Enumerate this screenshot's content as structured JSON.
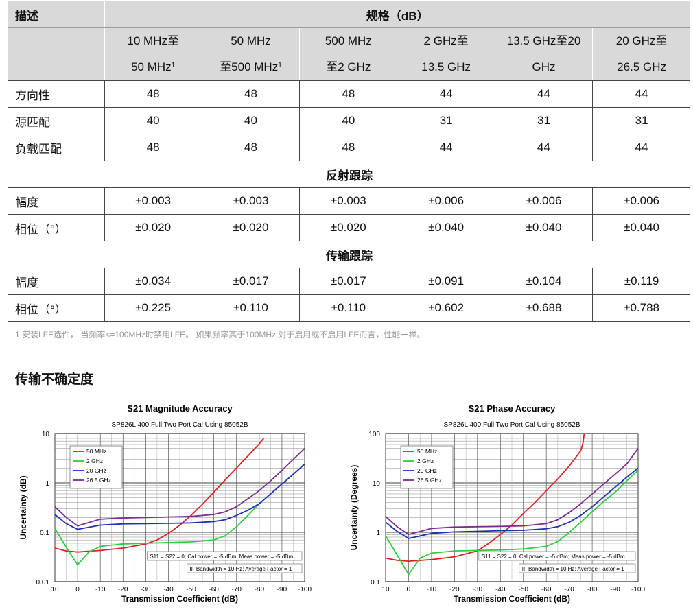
{
  "table": {
    "desc_label": "描述",
    "spec_label": "规格（dB）",
    "columns": [
      {
        "line1": "10 MHz至",
        "line2": "50 MHz",
        "sup": "1"
      },
      {
        "line1": "50 MHz",
        "line2": "至500 MHz",
        "sup": "1"
      },
      {
        "line1": "500 MHz",
        "line2": "至2 GHz",
        "sup": ""
      },
      {
        "line1": "2 GHz至",
        "line2": "13.5 GHz",
        "sup": ""
      },
      {
        "line1": "13.5 GHz至20",
        "line2": "GHz",
        "sup": ""
      },
      {
        "line1": "20 GHz至",
        "line2": "26.5 GHz",
        "sup": ""
      }
    ],
    "rows_top": [
      {
        "label": "方向性",
        "values": [
          "48",
          "48",
          "48",
          "44",
          "44",
          "44"
        ]
      },
      {
        "label": "源匹配",
        "values": [
          "40",
          "40",
          "40",
          "31",
          "31",
          "31"
        ]
      },
      {
        "label": "负载匹配",
        "values": [
          "48",
          "48",
          "48",
          "44",
          "44",
          "44"
        ]
      }
    ],
    "section_reflection": "反射跟踪",
    "rows_reflection": [
      {
        "label": "幅度",
        "values": [
          "±0.003",
          "±0.003",
          "±0.003",
          "±0.006",
          "±0.006",
          "±0.006"
        ]
      },
      {
        "label": "相位（°）",
        "values": [
          "±0.020",
          "±0.020",
          "±0.020",
          "±0.040",
          "±0.040",
          "±0.040"
        ]
      }
    ],
    "section_transmission": "传输跟踪",
    "rows_transmission": [
      {
        "label": "幅度",
        "values": [
          "±0.034",
          "±0.017",
          "±0.017",
          "±0.091",
          "±0.104",
          "±0.119"
        ]
      },
      {
        "label": "相位（°）",
        "values": [
          "±0.225",
          "±0.110",
          "±0.110",
          "±0.602",
          "±0.688",
          "±0.788"
        ]
      }
    ]
  },
  "footnote": "1 安装LFE选件， 当频率<=100MHz时禁用LFE。 如果频率高于100MHz,对于启用或不启用LFE而言，性能一样。",
  "section_heading": "传输不确定度",
  "chart_data": [
    {
      "type": "line",
      "title": "S21 Magnitude Accuracy",
      "subtitle": "SP826L 400 Full Two Port Cal Using 85052B",
      "xlabel": "Transmission Coefficient (dB)",
      "ylabel": "Uncertainty (dB)",
      "y_scale": "log",
      "xlim": [
        10,
        -100
      ],
      "ylim": [
        0.01,
        10
      ],
      "x_ticks": [
        "10",
        "0",
        "-10",
        "-20",
        "-30",
        "-40",
        "-50",
        "-60",
        "-70",
        "-80",
        "-90",
        "-100"
      ],
      "y_ticks": [
        "0.01",
        "0.1",
        "1",
        "10"
      ],
      "legend_position": "top-left",
      "notes": [
        "S11 = S22 = 0; Cal power = -5 dBm; Meas power = -5 dBm",
        "IF Bandwidth = 10 Hz; Average Factor = 1"
      ],
      "series": [
        {
          "name": "50 MHz",
          "color": "#e02020",
          "x": [
            10,
            5,
            0,
            -10,
            -20,
            -30,
            -35,
            -40,
            -45,
            -50,
            -55,
            -60,
            -65,
            -70,
            -75,
            -80,
            -82
          ],
          "y": [
            0.048,
            0.042,
            0.04,
            0.043,
            0.048,
            0.058,
            0.07,
            0.095,
            0.14,
            0.22,
            0.37,
            0.65,
            1.15,
            2.0,
            3.5,
            6.2,
            8.0
          ]
        },
        {
          "name": "2 GHz",
          "color": "#2ecc40",
          "x": [
            10,
            5,
            0,
            -5,
            -10,
            -20,
            -30,
            -40,
            -50,
            -60,
            -65,
            -70,
            -75,
            -80,
            -85,
            -90,
            -95,
            -100
          ],
          "y": [
            0.12,
            0.05,
            0.022,
            0.04,
            0.052,
            0.058,
            0.06,
            0.062,
            0.064,
            0.07,
            0.085,
            0.13,
            0.22,
            0.38,
            0.6,
            0.95,
            1.5,
            2.4
          ]
        },
        {
          "name": "20 GHz",
          "color": "#1f2fb5",
          "x": [
            10,
            5,
            0,
            -10,
            -20,
            -30,
            -40,
            -50,
            -60,
            -65,
            -70,
            -75,
            -80,
            -85,
            -90,
            -95,
            -100
          ],
          "y": [
            0.23,
            0.15,
            0.115,
            0.14,
            0.148,
            0.15,
            0.152,
            0.155,
            0.165,
            0.18,
            0.22,
            0.28,
            0.38,
            0.6,
            0.95,
            1.5,
            2.4
          ]
        },
        {
          "name": "26.5 GHz",
          "color": "#7b2d8e",
          "x": [
            10,
            5,
            0,
            -10,
            -20,
            -30,
            -40,
            -50,
            -60,
            -65,
            -70,
            -75,
            -80,
            -85,
            -90,
            -95,
            -100
          ],
          "y": [
            0.33,
            0.2,
            0.135,
            0.185,
            0.195,
            0.2,
            0.205,
            0.21,
            0.23,
            0.26,
            0.33,
            0.48,
            0.7,
            1.1,
            1.8,
            3.0,
            5.0
          ]
        }
      ]
    },
    {
      "type": "line",
      "title": "S21 Phase Accuracy",
      "subtitle": "SP826L 400 Full Two Port Cal Using 85052B",
      "xlabel": "Transmission Coefficient (dB)",
      "ylabel": "Uncertainty (Degrees)",
      "y_scale": "log",
      "xlim": [
        10,
        -100
      ],
      "ylim": [
        0.1,
        100
      ],
      "x_ticks": [
        "10",
        "0",
        "-10",
        "-20",
        "-30",
        "-40",
        "-50",
        "-60",
        "-70",
        "-80",
        "-90",
        "-100"
      ],
      "y_ticks": [
        "0.1",
        "1",
        "10",
        "100"
      ],
      "legend_position": "top-left",
      "notes": [
        "S11 = S22 = 0; Cal power = -5 dBm; Meas power = -5 dBm",
        "IF Bandwidth = 10 Hz; Average Factor = 1"
      ],
      "series": [
        {
          "name": "50 MHz",
          "color": "#e02020",
          "x": [
            10,
            5,
            0,
            -10,
            -20,
            -30,
            -35,
            -40,
            -45,
            -50,
            -55,
            -60,
            -65,
            -70,
            -75,
            -76,
            -76.5
          ],
          "y": [
            0.3,
            0.27,
            0.26,
            0.28,
            0.32,
            0.42,
            0.6,
            0.9,
            1.4,
            2.4,
            4.0,
            7.0,
            12,
            22,
            45,
            65,
            100
          ]
        },
        {
          "name": "2 GHz",
          "color": "#2ecc40",
          "x": [
            10,
            5,
            0,
            -5,
            -10,
            -20,
            -30,
            -40,
            -50,
            -60,
            -65,
            -70,
            -75,
            -80,
            -85,
            -90,
            -95,
            -100
          ],
          "y": [
            0.85,
            0.35,
            0.14,
            0.3,
            0.38,
            0.42,
            0.43,
            0.44,
            0.46,
            0.52,
            0.65,
            1.0,
            1.6,
            2.6,
            4.2,
            6.5,
            11,
            18
          ]
        },
        {
          "name": "20 GHz",
          "color": "#1f2fb5",
          "x": [
            10,
            5,
            0,
            -10,
            -20,
            -30,
            -40,
            -50,
            -60,
            -65,
            -70,
            -75,
            -80,
            -85,
            -90,
            -95,
            -100
          ],
          "y": [
            1.6,
            1.05,
            0.75,
            0.95,
            1.02,
            1.05,
            1.08,
            1.1,
            1.18,
            1.3,
            1.6,
            2.2,
            3.3,
            5.2,
            8.2,
            13,
            20
          ]
        },
        {
          "name": "26.5 GHz",
          "color": "#7b2d8e",
          "x": [
            10,
            5,
            0,
            -10,
            -20,
            -30,
            -40,
            -50,
            -60,
            -65,
            -70,
            -75,
            -80,
            -85,
            -90,
            -95,
            -100
          ],
          "y": [
            2.1,
            1.3,
            0.9,
            1.2,
            1.28,
            1.3,
            1.32,
            1.35,
            1.5,
            1.8,
            2.5,
            3.8,
            6,
            9.5,
            15,
            24,
            50
          ]
        }
      ]
    }
  ]
}
